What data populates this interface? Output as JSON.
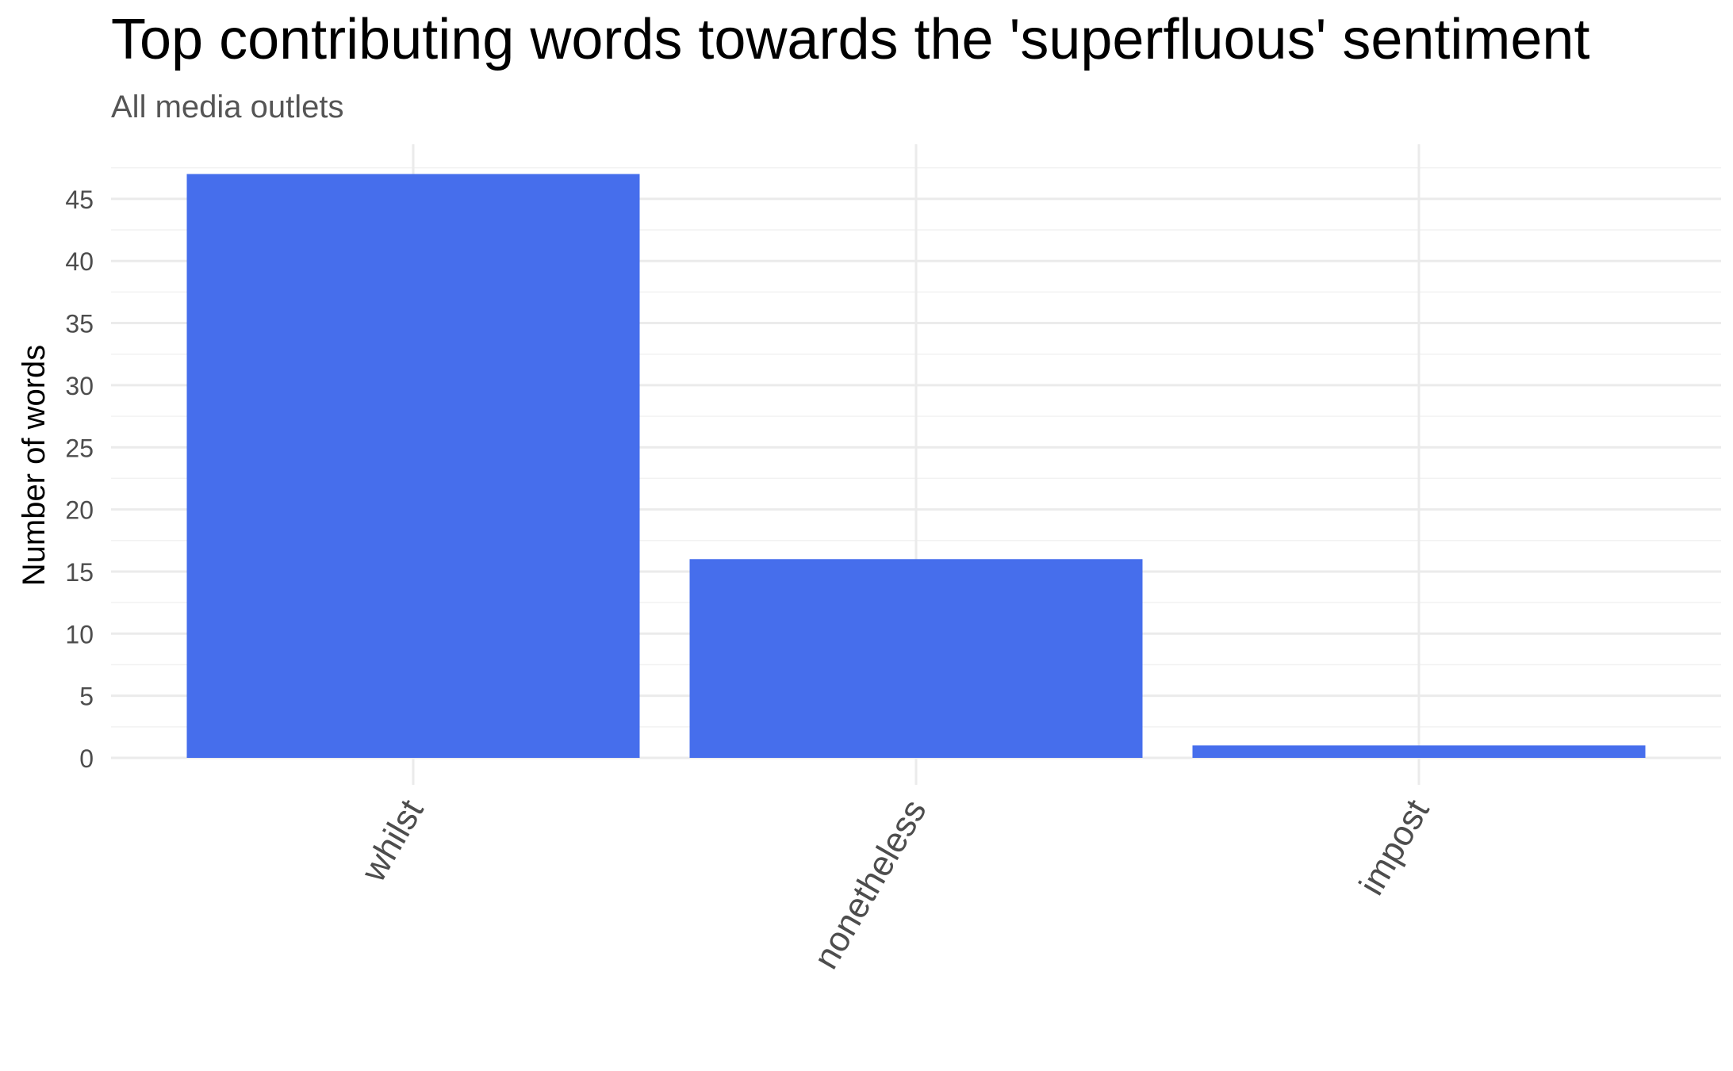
{
  "chart_data": {
    "type": "bar",
    "title": "Top contributing words towards the 'superfluous' sentiment",
    "subtitle": "All media outlets",
    "xlabel": "",
    "ylabel": "Number of words",
    "categories": [
      "whilst",
      "nonetheless",
      "impost"
    ],
    "values": [
      47,
      16,
      1
    ],
    "ylim": [
      0,
      49
    ],
    "yticks": [
      0,
      5,
      10,
      15,
      20,
      25,
      30,
      35,
      40,
      45
    ],
    "grid": true,
    "legend": "none",
    "colors": {
      "bar": "#466EEC",
      "grid_major": "#EBEBEB",
      "grid_minor": "#F2F2F2",
      "title": "#000000",
      "subtitle": "#555555",
      "tick_text": "#4D4D4D"
    }
  }
}
